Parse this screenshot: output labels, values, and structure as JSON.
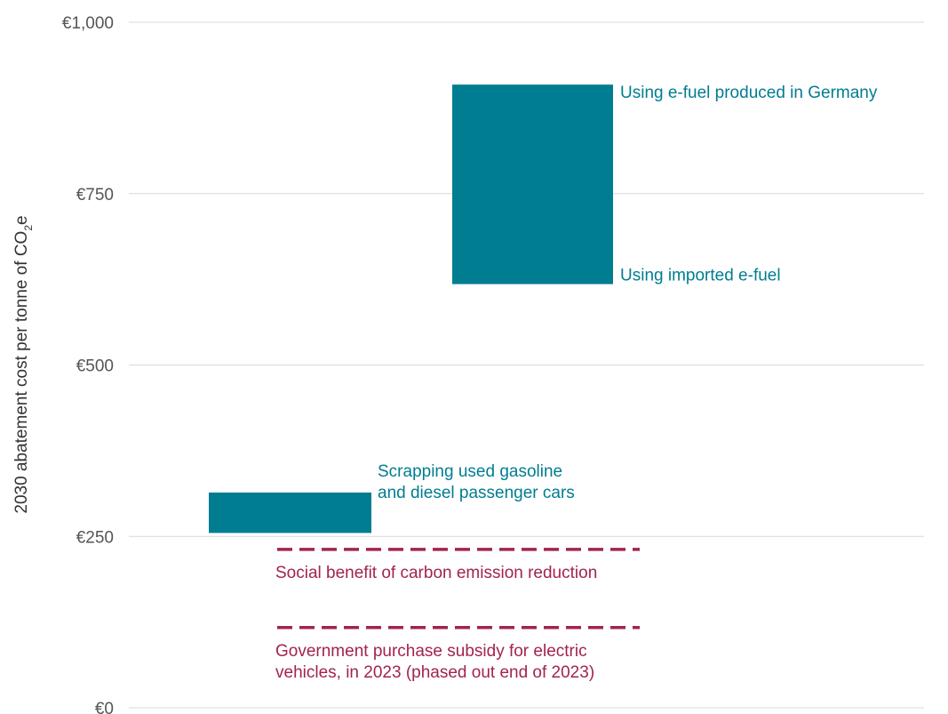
{
  "chart_data": {
    "type": "floating-bar",
    "ylabel": "2030 abatement cost per tonne of CO",
    "ylabel_sub": "2",
    "ylabel_tail": "e",
    "ylim": [
      0,
      1000
    ],
    "yticks": [
      {
        "value": 0,
        "label": "€0"
      },
      {
        "value": 250,
        "label": "€250"
      },
      {
        "value": 500,
        "label": "€500"
      },
      {
        "value": 750,
        "label": "€750"
      },
      {
        "value": 1000,
        "label": "€1,000"
      }
    ],
    "grid": true,
    "colors": {
      "bar": "#007d91",
      "reference": "#a3244b",
      "grid": "#d9d9d9"
    },
    "bars": [
      {
        "low": 255,
        "high": 314,
        "label_lines": [
          "Scrapping used gasoline",
          "and diesel passenger cars"
        ]
      },
      {
        "low": 618,
        "high": 909,
        "label_high": "Using e-fuel produced in Germany",
        "label_low": "Using imported e-fuel"
      }
    ],
    "reference_lines": [
      {
        "value": 231,
        "label_lines": [
          "Social benefit of carbon emission reduction"
        ]
      },
      {
        "value": 117,
        "label_lines": [
          "Government purchase subsidy for electric",
          "vehicles, in 2023 (phased out end of 2023)"
        ]
      }
    ]
  }
}
